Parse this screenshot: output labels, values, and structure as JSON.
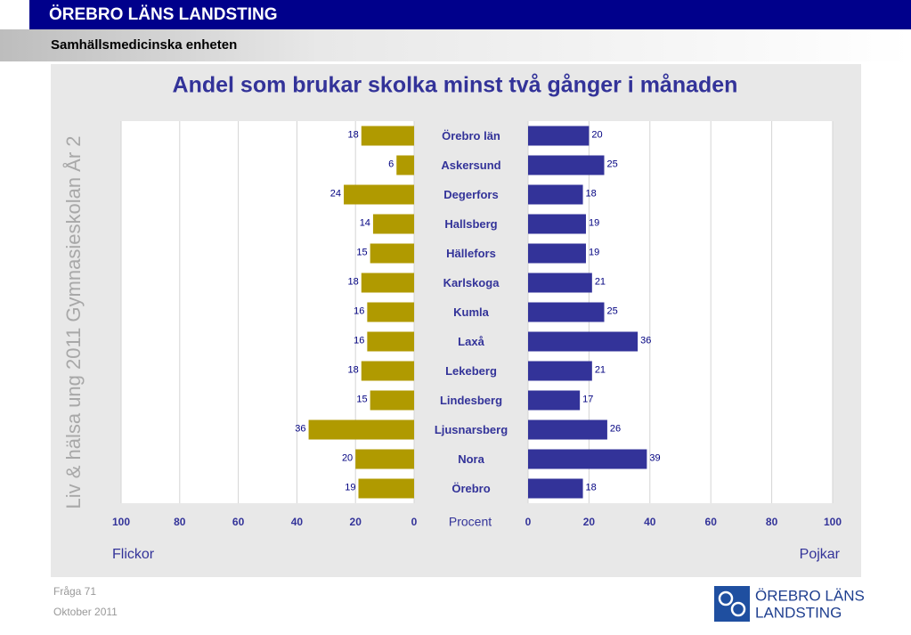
{
  "header": {
    "title": "ÖREBRO LÄNS LANDSTING",
    "subtitle": "Samhällsmedicinska enheten"
  },
  "side_text": "Liv & hälsa ung 2011 Gymnasieskolan År 2",
  "footer": {
    "question": "Fråga 71",
    "date": "Oktober 2011"
  },
  "logo": {
    "line1": "ÖREBRO LÄNS",
    "line2": "LANDSTING"
  },
  "chart_data": {
    "type": "bar",
    "title": "Andel som brukar skolka minst två gånger i månaden",
    "categories": [
      "Örebro län",
      "Askersund",
      "Degerfors",
      "Hallsberg",
      "Hällefors",
      "Karlskoga",
      "Kumla",
      "Laxå",
      "Lekeberg",
      "Lindesberg",
      "Ljusnarsberg",
      "Nora",
      "Örebro"
    ],
    "series": [
      {
        "name": "Flickor",
        "color": "#b09a00",
        "values": [
          18,
          6,
          24,
          14,
          15,
          18,
          16,
          16,
          18,
          15,
          36,
          20,
          19
        ]
      },
      {
        "name": "Pojkar",
        "color": "#333399",
        "values": [
          20,
          25,
          18,
          19,
          19,
          21,
          25,
          36,
          21,
          17,
          26,
          39,
          18
        ]
      }
    ],
    "xlabel": "Procent",
    "xlim": [
      0,
      100
    ],
    "xticks": [
      0,
      20,
      40,
      60,
      80,
      100
    ],
    "grid": true
  }
}
